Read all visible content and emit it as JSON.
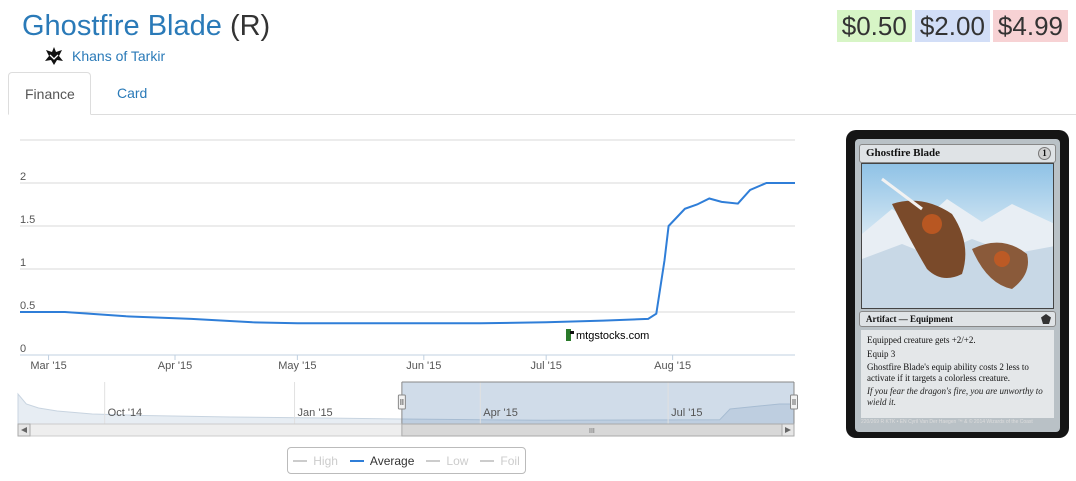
{
  "card": {
    "name": "Ghostfire Blade",
    "rarity": "(R)",
    "set_name": "Khans of Tarkir",
    "set_icon": "khans-clan-icon"
  },
  "prices": {
    "low": "$0.50",
    "average": "$2.00",
    "high": "$4.99",
    "low_color": "#d7f5c6",
    "average_color": "#d2def7",
    "high_color": "#f7d2d4"
  },
  "tabs": [
    {
      "label": "Finance",
      "active": true
    },
    {
      "label": "Card",
      "active": false
    }
  ],
  "watermark": "mtgstocks.com",
  "navigator": {
    "labels": [
      "Oct '14",
      "Jan '15",
      "Apr '15",
      "Jul '15"
    ],
    "scroll_grip": "III",
    "selected_start": "2015-02-22",
    "selected_end": "2015-08-31"
  },
  "chart_data": {
    "type": "line",
    "x_ticks": [
      "Mar '15",
      "Apr '15",
      "May '15",
      "Jun '15",
      "Jul '15",
      "Aug '15"
    ],
    "y_ticks": [
      "0",
      "0.5",
      "1",
      "1.5",
      "2"
    ],
    "ylim": [
      0,
      2.5
    ],
    "xlim": [
      "2015-02-22",
      "2015-08-31"
    ],
    "grid": true,
    "series": [
      {
        "name": "Average",
        "color": "#2f7ed8",
        "points": [
          [
            "2015-02-22",
            0.5
          ],
          [
            "2015-03-05",
            0.5
          ],
          [
            "2015-03-20",
            0.45
          ],
          [
            "2015-04-05",
            0.42
          ],
          [
            "2015-04-20",
            0.38
          ],
          [
            "2015-05-01",
            0.37
          ],
          [
            "2015-05-15",
            0.37
          ],
          [
            "2015-06-01",
            0.37
          ],
          [
            "2015-06-15",
            0.37
          ],
          [
            "2015-07-01",
            0.38
          ],
          [
            "2015-07-15",
            0.4
          ],
          [
            "2015-07-26",
            0.42
          ],
          [
            "2015-07-28",
            0.48
          ],
          [
            "2015-07-30",
            1.1
          ],
          [
            "2015-07-31",
            1.5
          ],
          [
            "2015-08-04",
            1.7
          ],
          [
            "2015-08-07",
            1.75
          ],
          [
            "2015-08-10",
            1.82
          ],
          [
            "2015-08-13",
            1.78
          ],
          [
            "2015-08-17",
            1.76
          ],
          [
            "2015-08-20",
            1.92
          ],
          [
            "2015-08-24",
            2.0
          ],
          [
            "2015-08-31",
            2.0
          ]
        ]
      }
    ],
    "legend": [
      {
        "label": "High",
        "visible": false
      },
      {
        "label": "Average",
        "visible": true
      },
      {
        "label": "Low",
        "visible": false
      },
      {
        "label": "Foil",
        "visible": false
      }
    ],
    "legend_position": "bottom"
  },
  "card_image": {
    "name": "Ghostfire Blade",
    "mana_cost": "1",
    "type_line": "Artifact — Equipment",
    "rules_text": [
      "Equipped creature gets +2/+2.",
      "Equip 3",
      "Ghostfire Blade's equip ability costs 2 less to activate if it targets a colorless creature."
    ],
    "flavor_text": "If you fear the dragon's fire, you are unworthy to wield it.",
    "collector_line": "220/269 R",
    "set_line": "KTK • EN",
    "artist": "Cyril Van Der Haegen",
    "copyright": "™ & © 2014 Wizards of the Coast"
  }
}
